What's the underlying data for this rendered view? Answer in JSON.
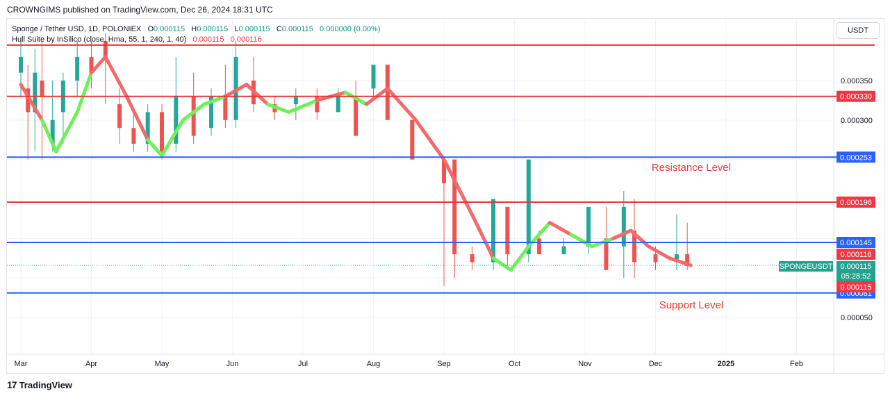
{
  "header": {
    "publisher_line": "CROWNGIMS published on TradingView.com, Dec 26, 2024 18:31 UTC"
  },
  "legend": {
    "line1_symbol": "Sponge / Tether USD, 1D, POLONIEX",
    "o_label": "O",
    "o_value": "0.000115",
    "h_label": "H",
    "h_value": "0.000115",
    "l_label": "L",
    "l_value": "0.000115",
    "c_label": "C",
    "c_value": "0.000115",
    "change": "0.000000 (0.00%)",
    "line2_indicator": "Hull Suite by InSilico (close, Hma, 55, 1, 240, 1, 40)",
    "ind_value1": "0.000115",
    "ind_value2": "0.000116"
  },
  "currency_button": "USDT",
  "footer": {
    "brand": "TradingView",
    "logo_glyph": "17"
  },
  "colors": {
    "up": "#26a69a",
    "down": "#ef5350",
    "hull_up": "#6ef059",
    "hull_down": "#f4696a",
    "red_line": "#e53935",
    "blue_line": "#2962ff",
    "tag_red": "#f23645",
    "tag_blue": "#2962ff",
    "tag_green": "#22a38e"
  },
  "chart_data": {
    "type": "line",
    "title": "Sponge / Tether USD, 1D, POLONIEX",
    "ylim": [
      0.0,
      0.0004
    ],
    "x_ticks": [
      "Mar",
      "Apr",
      "May",
      "Jun",
      "Jul",
      "Aug",
      "Sep",
      "Oct",
      "Nov",
      "Dec",
      "2025",
      "Feb"
    ],
    "y_ticks": [
      "0.000350",
      "0.000300",
      "0.000050"
    ],
    "y_tick_values": [
      0.00035,
      0.0003,
      5e-05
    ],
    "horizontal_lines": [
      {
        "value": 0.000395,
        "color": "red",
        "label": ""
      },
      {
        "value": 0.00033,
        "color": "red",
        "label": "0.000330"
      },
      {
        "value": 0.000253,
        "color": "blue",
        "label": "0.000253"
      },
      {
        "value": 0.000196,
        "color": "red",
        "label": "0.000196"
      },
      {
        "value": 0.000145,
        "color": "blue",
        "label": "0.000145"
      },
      {
        "value": 8.1e-05,
        "color": "blue",
        "label": "0.000081"
      }
    ],
    "price_tags": [
      {
        "label": "0.000116",
        "value": 0.00013,
        "kind": "red"
      },
      {
        "label": "0.000115",
        "value": 0.000115,
        "kind": "green",
        "sub": "05:28:52",
        "symbol": "SPONGEUSDT"
      },
      {
        "label": "0.000115",
        "value": 9.4e-05,
        "kind": "red"
      }
    ],
    "annotations": [
      {
        "text": "Resistance Level",
        "x": "Oct",
        "value": 0.00024
      },
      {
        "text": "Support Level",
        "x": "Oct",
        "value": 6.6e-05
      }
    ],
    "hull_series": [
      {
        "month": 3.0,
        "v": 0.000345,
        "dir": "down"
      },
      {
        "month": 3.3,
        "v": 0.0003,
        "dir": "down"
      },
      {
        "month": 3.5,
        "v": 0.00026,
        "dir": "up"
      },
      {
        "month": 3.8,
        "v": 0.00031,
        "dir": "up"
      },
      {
        "month": 4.0,
        "v": 0.00036,
        "dir": "up"
      },
      {
        "month": 4.2,
        "v": 0.00038,
        "dir": "down"
      },
      {
        "month": 4.5,
        "v": 0.00033,
        "dir": "down"
      },
      {
        "month": 4.8,
        "v": 0.000275,
        "dir": "down"
      },
      {
        "month": 5.0,
        "v": 0.000255,
        "dir": "up"
      },
      {
        "month": 5.3,
        "v": 0.0003,
        "dir": "up"
      },
      {
        "month": 5.6,
        "v": 0.00032,
        "dir": "up"
      },
      {
        "month": 5.9,
        "v": 0.00033,
        "dir": "up"
      },
      {
        "month": 6.2,
        "v": 0.000345,
        "dir": "down"
      },
      {
        "month": 6.5,
        "v": 0.00032,
        "dir": "down"
      },
      {
        "month": 6.8,
        "v": 0.00031,
        "dir": "up"
      },
      {
        "month": 7.2,
        "v": 0.000325,
        "dir": "up"
      },
      {
        "month": 7.6,
        "v": 0.000335,
        "dir": "down"
      },
      {
        "month": 7.9,
        "v": 0.00032,
        "dir": "up"
      },
      {
        "month": 8.2,
        "v": 0.00034,
        "dir": "down"
      },
      {
        "month": 8.6,
        "v": 0.0003,
        "dir": "down"
      },
      {
        "month": 9.0,
        "v": 0.00025,
        "dir": "down"
      },
      {
        "month": 9.4,
        "v": 0.00018,
        "dir": "down"
      },
      {
        "month": 9.7,
        "v": 0.000125,
        "dir": "down"
      },
      {
        "month": 9.95,
        "v": 0.00011,
        "dir": "up"
      },
      {
        "month": 10.2,
        "v": 0.00014,
        "dir": "up"
      },
      {
        "month": 10.5,
        "v": 0.00017,
        "dir": "up"
      },
      {
        "month": 10.8,
        "v": 0.000155,
        "dir": "down"
      },
      {
        "month": 11.1,
        "v": 0.00014,
        "dir": "up"
      },
      {
        "month": 11.4,
        "v": 0.00015,
        "dir": "up"
      },
      {
        "month": 11.65,
        "v": 0.00016,
        "dir": "down"
      },
      {
        "month": 11.9,
        "v": 0.00014,
        "dir": "down"
      },
      {
        "month": 12.2,
        "v": 0.000125,
        "dir": "down"
      },
      {
        "month": 12.5,
        "v": 0.000116,
        "dir": "down"
      }
    ],
    "candles": [
      {
        "m": 3.0,
        "o": 0.00036,
        "c": 0.00038,
        "h": 0.0004,
        "l": 0.00033
      },
      {
        "m": 3.1,
        "o": 0.00034,
        "c": 0.00031,
        "h": 0.00037,
        "l": 0.00025
      },
      {
        "m": 3.2,
        "o": 0.00031,
        "c": 0.00036,
        "h": 0.00039,
        "l": 0.00026
      },
      {
        "m": 3.3,
        "o": 0.00035,
        "c": 0.00033,
        "h": 0.0004,
        "l": 0.00025
      },
      {
        "m": 3.45,
        "o": 0.00027,
        "c": 0.0003,
        "h": 0.00035,
        "l": 0.00026
      },
      {
        "m": 3.6,
        "o": 0.00031,
        "c": 0.00035,
        "h": 0.00036,
        "l": 0.00027
      },
      {
        "m": 3.8,
        "o": 0.00035,
        "c": 0.00038,
        "h": 0.0004,
        "l": 0.00033
      },
      {
        "m": 4.0,
        "o": 0.00038,
        "c": 0.00036,
        "h": 0.0004,
        "l": 0.00034
      },
      {
        "m": 4.2,
        "o": 0.0004,
        "c": 0.00038,
        "h": 0.00041,
        "l": 0.00032
      },
      {
        "m": 4.4,
        "o": 0.00032,
        "c": 0.00029,
        "h": 0.00034,
        "l": 0.00027
      },
      {
        "m": 4.6,
        "o": 0.00029,
        "c": 0.00027,
        "h": 0.00031,
        "l": 0.00026
      },
      {
        "m": 4.8,
        "o": 0.00027,
        "c": 0.00031,
        "h": 0.00032,
        "l": 0.00026
      },
      {
        "m": 5.0,
        "o": 0.00031,
        "c": 0.00026,
        "h": 0.00032,
        "l": 0.00025
      },
      {
        "m": 5.2,
        "o": 0.00027,
        "c": 0.00033,
        "h": 0.00038,
        "l": 0.00026
      },
      {
        "m": 5.45,
        "o": 0.00033,
        "c": 0.00028,
        "h": 0.00036,
        "l": 0.00027
      },
      {
        "m": 5.7,
        "o": 0.00029,
        "c": 0.00033,
        "h": 0.00034,
        "l": 0.00028
      },
      {
        "m": 5.9,
        "o": 0.00033,
        "c": 0.0003,
        "h": 0.00037,
        "l": 0.00029
      },
      {
        "m": 6.05,
        "o": 0.0003,
        "c": 0.00038,
        "h": 0.0004,
        "l": 0.00029
      },
      {
        "m": 6.3,
        "o": 0.00035,
        "c": 0.00032,
        "h": 0.00038,
        "l": 0.00031
      },
      {
        "m": 6.6,
        "o": 0.00032,
        "c": 0.00031,
        "h": 0.00033,
        "l": 0.0003
      },
      {
        "m": 6.9,
        "o": 0.00032,
        "c": 0.00033,
        "h": 0.00034,
        "l": 0.0003
      },
      {
        "m": 7.2,
        "o": 0.00033,
        "c": 0.00031,
        "h": 0.00034,
        "l": 0.0003
      },
      {
        "m": 7.5,
        "o": 0.00031,
        "c": 0.00033,
        "h": 0.00034,
        "l": 0.00031
      },
      {
        "m": 7.75,
        "o": 0.00033,
        "c": 0.00028,
        "h": 0.00035,
        "l": 0.00028
      },
      {
        "m": 8.0,
        "o": 0.00034,
        "c": 0.00037,
        "h": 0.00037,
        "l": 0.00033
      },
      {
        "m": 8.2,
        "o": 0.00037,
        "c": 0.0003,
        "h": 0.00037,
        "l": 0.0003
      },
      {
        "m": 8.55,
        "o": 0.0003,
        "c": 0.00025,
        "h": 0.0003,
        "l": 0.00025
      },
      {
        "m": 9.0,
        "o": 0.00025,
        "c": 0.00022,
        "h": 0.00025,
        "l": 9e-05
      },
      {
        "m": 9.15,
        "o": 0.00025,
        "c": 0.00013,
        "h": 0.00025,
        "l": 0.0001
      },
      {
        "m": 9.4,
        "o": 0.00013,
        "c": 0.00012,
        "h": 0.00014,
        "l": 0.00011
      },
      {
        "m": 9.7,
        "o": 0.00012,
        "c": 0.0002,
        "h": 0.0002,
        "l": 0.00011
      },
      {
        "m": 9.9,
        "o": 0.00019,
        "c": 0.00013,
        "h": 0.00019,
        "l": 0.00011
      },
      {
        "m": 10.2,
        "o": 0.00013,
        "c": 0.00025,
        "h": 0.00025,
        "l": 0.00012
      },
      {
        "m": 10.35,
        "o": 0.00015,
        "c": 0.00013,
        "h": 0.00016,
        "l": 0.00013
      },
      {
        "m": 10.7,
        "o": 0.00013,
        "c": 0.00014,
        "h": 0.00015,
        "l": 0.00013
      },
      {
        "m": 11.05,
        "o": 0.00014,
        "c": 0.00019,
        "h": 0.00019,
        "l": 0.00013
      },
      {
        "m": 11.3,
        "o": 0.00015,
        "c": 0.00011,
        "h": 0.00019,
        "l": 0.00011
      },
      {
        "m": 11.55,
        "o": 0.00014,
        "c": 0.00019,
        "h": 0.00021,
        "l": 0.0001
      },
      {
        "m": 11.7,
        "o": 0.00016,
        "c": 0.00012,
        "h": 0.0002,
        "l": 0.0001
      },
      {
        "m": 12.0,
        "o": 0.00013,
        "c": 0.00012,
        "h": 0.00014,
        "l": 0.00011
      },
      {
        "m": 12.3,
        "o": 0.00012,
        "c": 0.00013,
        "h": 0.00018,
        "l": 0.00011
      },
      {
        "m": 12.45,
        "o": 0.00013,
        "c": 0.000115,
        "h": 0.00017,
        "l": 0.00011
      }
    ]
  }
}
